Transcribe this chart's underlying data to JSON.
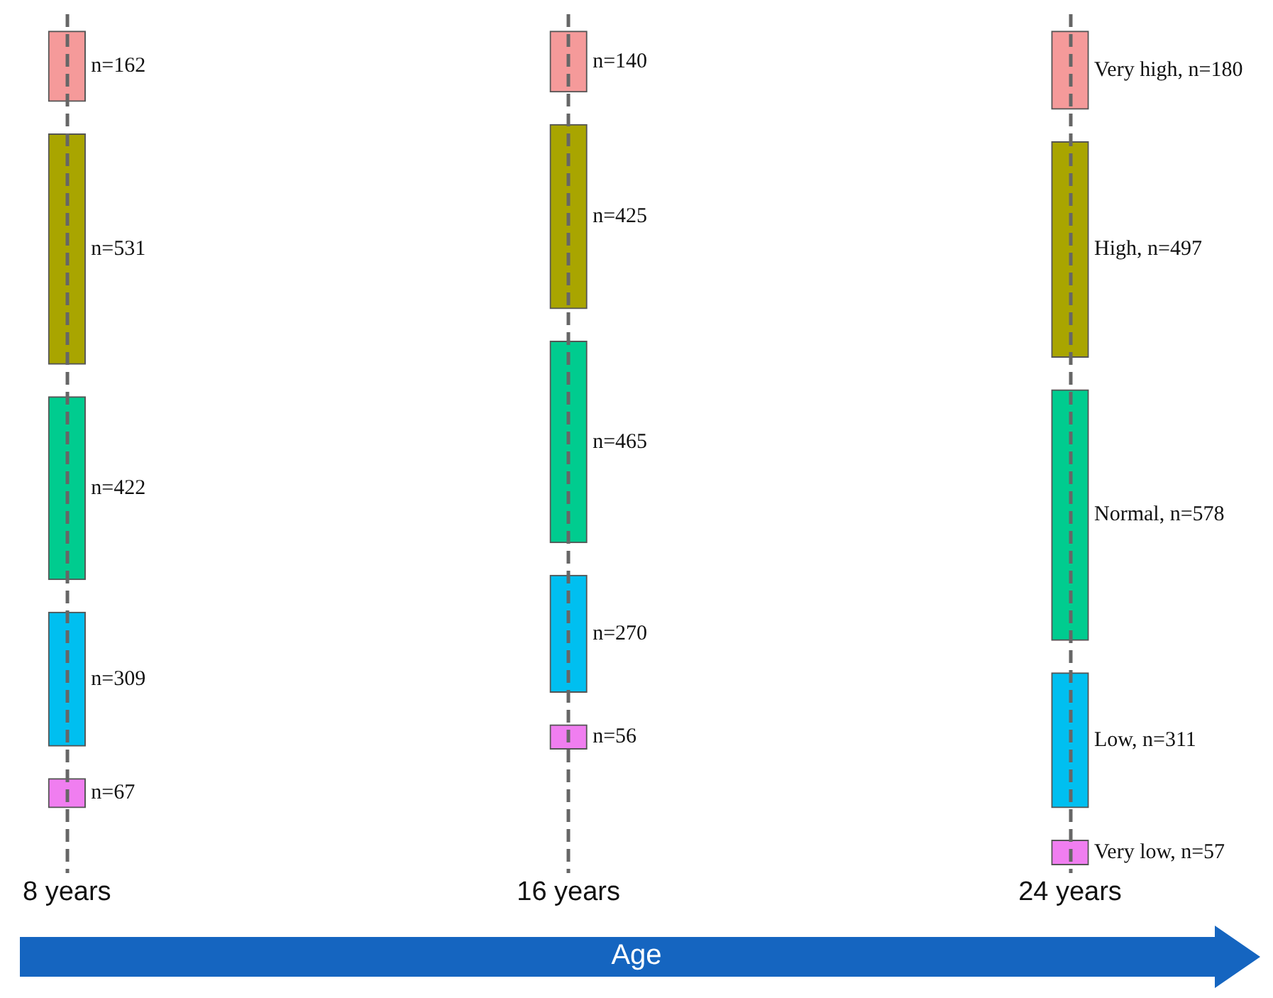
{
  "chart_data": {
    "type": "other",
    "xlabel": "Age",
    "categories": [
      "8 years",
      "16 years",
      "24 years"
    ],
    "legend": false,
    "series": [
      {
        "color": "#f59a9a",
        "values": [
          162,
          140,
          180
        ],
        "value_labels": [
          "n=162",
          "n=140",
          "Very high, n=180"
        ]
      },
      {
        "color": "#a9a500",
        "values": [
          531,
          425,
          497
        ],
        "value_labels": [
          "n=531",
          "n=425",
          "High, n=497"
        ]
      },
      {
        "color": "#00cc8f",
        "values": [
          422,
          465,
          578
        ],
        "value_labels": [
          "n=422",
          "n=465",
          "Normal, n=578"
        ]
      },
      {
        "color": "#00bff0",
        "values": [
          309,
          270,
          311
        ],
        "value_labels": [
          "n=309",
          "n=270",
          "Low, n=311"
        ]
      },
      {
        "color": "#f07ef0",
        "values": [
          67,
          56,
          57
        ],
        "value_labels": [
          "n=67",
          "n=56",
          "Very low, n=57"
        ]
      }
    ]
  }
}
